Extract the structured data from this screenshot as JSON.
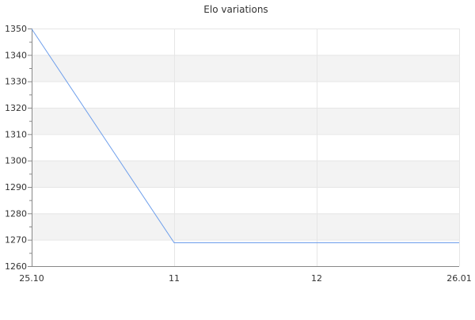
{
  "chart_data": {
    "type": "line",
    "title": "Elo variations",
    "xlabel": "",
    "ylabel": "",
    "categories": [
      "25.10",
      "11",
      "12",
      "26.01"
    ],
    "series": [
      {
        "values": [
          1350,
          1269,
          1269,
          1269
        ],
        "color": "#6d9eeb"
      }
    ],
    "ylim": [
      1260,
      1350
    ],
    "yticks": [
      1260,
      1270,
      1280,
      1290,
      1300,
      1310,
      1320,
      1330,
      1340,
      1350
    ],
    "y_minor_step": 5,
    "grid": true,
    "alternate_bands": [
      [
        1270,
        1280
      ],
      [
        1290,
        1300
      ],
      [
        1310,
        1320
      ],
      [
        1330,
        1340
      ]
    ],
    "band_color": "#f3f3f3",
    "grid_color": "#e6e6e6",
    "axis_color": "#888888"
  }
}
